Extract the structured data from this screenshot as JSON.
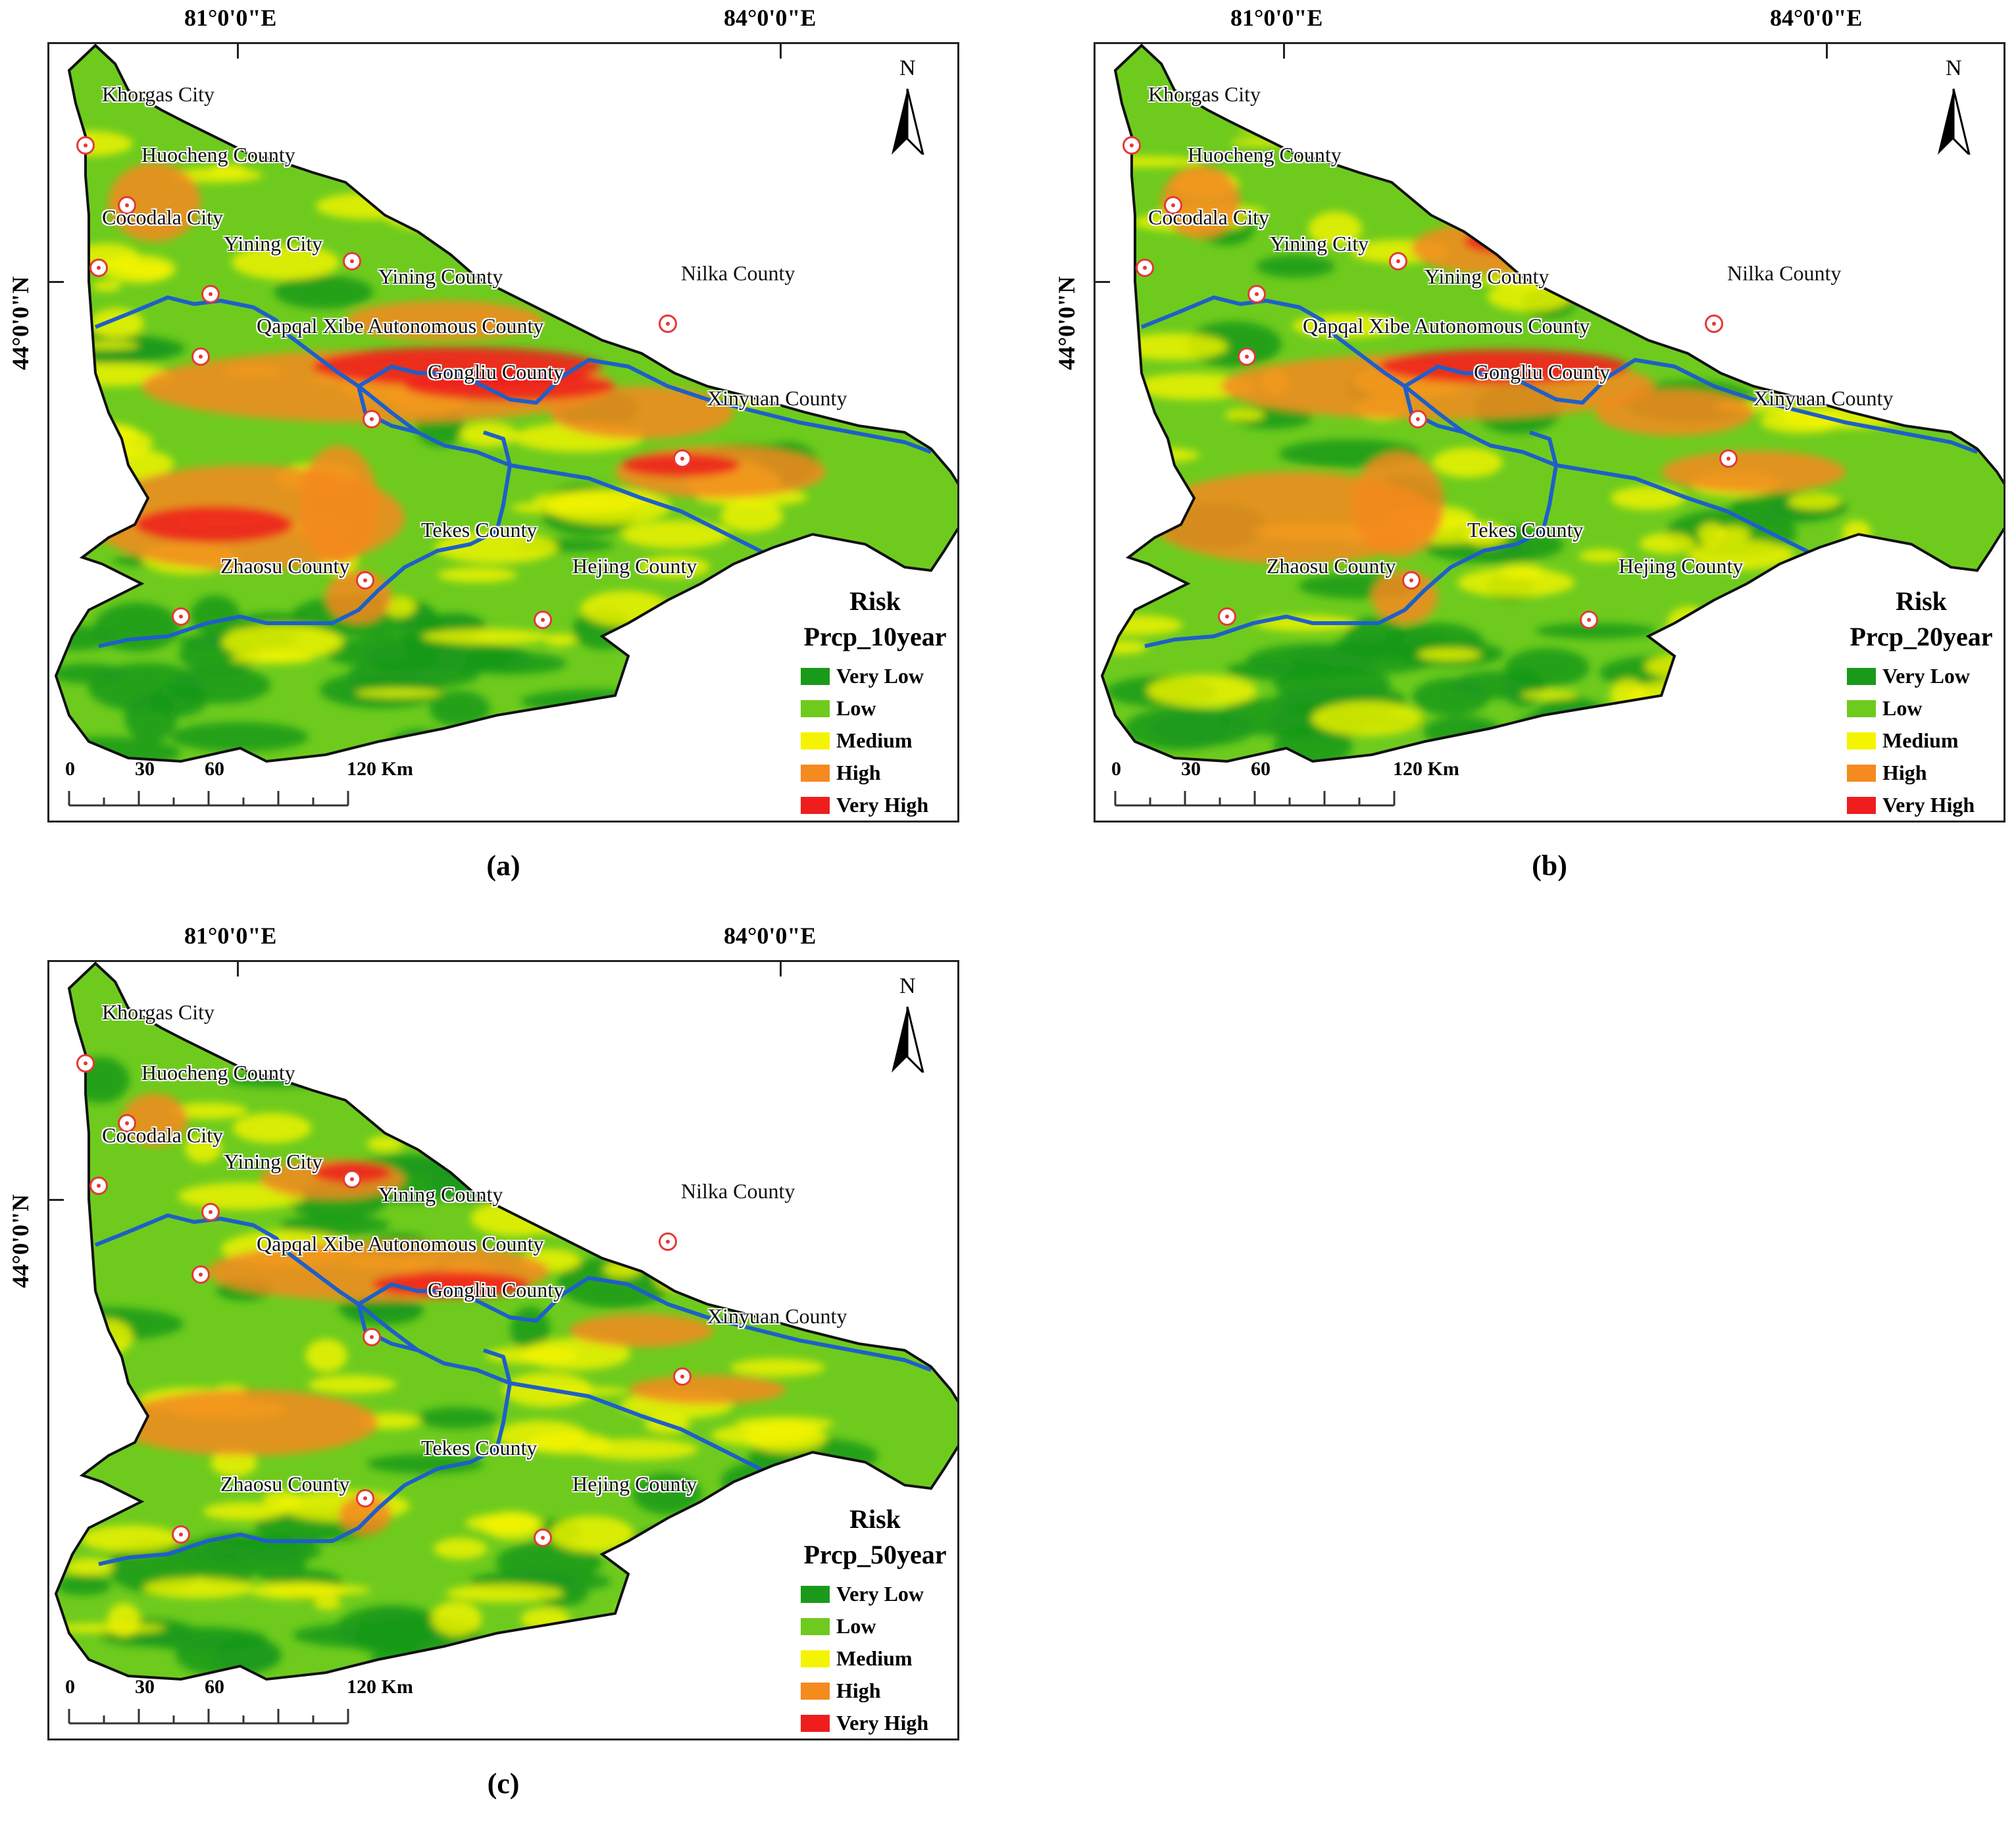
{
  "longitude_labels": [
    "81°0'0\"E",
    "84°0'0\"E"
  ],
  "latitude_label": "44°0'0\"N",
  "north_label": "N",
  "legend": {
    "title": "Risk",
    "classes": [
      {
        "label": "Very Low",
        "color": "#1a9a1a"
      },
      {
        "label": "Low",
        "color": "#6ecb1e"
      },
      {
        "label": "Medium",
        "color": "#f4f400"
      },
      {
        "label": "High",
        "color": "#f58a1f"
      },
      {
        "label": "Very High",
        "color": "#ef1d1d"
      }
    ]
  },
  "river_color": "#1f5fc8",
  "scalebar": {
    "ticks": [
      "0",
      "30",
      "60",
      "120 Km"
    ]
  },
  "places": [
    {
      "name": "Khorgas City"
    },
    {
      "name": "Huocheng County"
    },
    {
      "name": "Cocodala City"
    },
    {
      "name": "Yining City"
    },
    {
      "name": "Yining County"
    },
    {
      "name": "Nilka County"
    },
    {
      "name": "Qapqal Xibe Autonomous County"
    },
    {
      "name": "Gongliu County"
    },
    {
      "name": "Xinyuan County"
    },
    {
      "name": "Tekes County"
    },
    {
      "name": "Zhaosu County"
    },
    {
      "name": "Hejing County"
    }
  ],
  "panels": [
    {
      "letter": "(a)",
      "scenario": "Prcp_10year"
    },
    {
      "letter": "(b)",
      "scenario": "Prcp_20year"
    },
    {
      "letter": "(c)",
      "scenario": "Prcp_50year"
    }
  ]
}
